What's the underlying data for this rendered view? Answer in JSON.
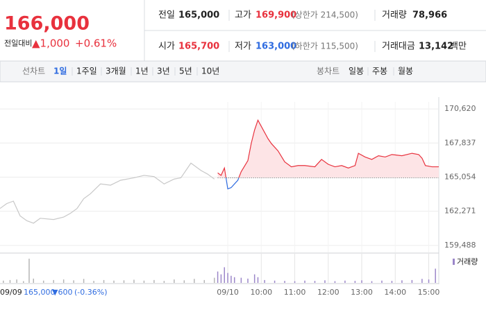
{
  "header": {
    "price": "166,000",
    "change_label": "전일대비",
    "change": "▲1,000",
    "change_pct": "+0.61%",
    "info": [
      {
        "label": "전일",
        "value": "165,000"
      },
      {
        "label": "고가",
        "value": "169,900",
        "note": "(상한가 214,500)"
      },
      {
        "label": "거래량",
        "value": "78,966"
      },
      {
        "label": "시가",
        "value": "165,700"
      },
      {
        "label": "저가",
        "value": "163,000",
        "note": "(하한가 115,500)"
      },
      {
        "label": "거래대금",
        "value": "13,142",
        "unit": "백만"
      }
    ]
  },
  "tabs": {
    "line_label": "선차트",
    "line_tabs": [
      "1일",
      "1주일",
      "3개월",
      "1년",
      "3년",
      "5년",
      "10년"
    ],
    "candle_label": "봉차트",
    "candle_tabs": [
      "일봉",
      "주봉",
      "월봉"
    ]
  },
  "footer": {
    "date": "09/09",
    "close": "165,000",
    "change": "▼600",
    "change_pct": "(-0.36%)"
  },
  "chart_data": {
    "type": "line",
    "xlim": [
      0,
      131
    ],
    "xticks": [
      {
        "value": 68,
        "label": "09/10"
      },
      {
        "value": 78,
        "label": "10:00"
      },
      {
        "value": 88,
        "label": "11:00"
      },
      {
        "value": 98,
        "label": "12:00"
      },
      {
        "value": 108,
        "label": "13:00"
      },
      {
        "value": 118,
        "label": "14:00"
      },
      {
        "value": 128,
        "label": "15:00"
      }
    ],
    "ylim": [
      158920,
      171190
    ],
    "yticks": [
      {
        "value": 170620,
        "label": "170,620"
      },
      {
        "value": 167837,
        "label": "167,837"
      },
      {
        "value": 165054,
        "label": "165,054"
      },
      {
        "value": 162271,
        "label": "162,271"
      },
      {
        "value": 159488,
        "label": "159,488"
      }
    ],
    "grid": true,
    "baseline": 165000,
    "series": [
      {
        "color": "#c8c8c8",
        "x": [
          0,
          2,
          4,
          6,
          8,
          10,
          12,
          16,
          19,
          21,
          23,
          25,
          27,
          30,
          33,
          36,
          40,
          43,
          46,
          49,
          52,
          54,
          57,
          60,
          62,
          64
        ],
        "values": [
          162500,
          162900,
          163100,
          161900,
          161500,
          161300,
          161700,
          161600,
          161800,
          162100,
          162500,
          163300,
          163700,
          164500,
          164400,
          164800,
          165000,
          165200,
          165100,
          164500,
          164900,
          165000,
          166200,
          165600,
          165300,
          164900
        ]
      },
      {
        "color": "#e8313d",
        "below_color": "#2f6ce0",
        "fill_color": "#fde4e6",
        "x": [
          65,
          66,
          67,
          68,
          69,
          70,
          71,
          72,
          74,
          75,
          76,
          77,
          79,
          80,
          81,
          83,
          85,
          87,
          89,
          91,
          94,
          96,
          98,
          100,
          102,
          104,
          106,
          107,
          109,
          111,
          113,
          115,
          117,
          120,
          123,
          125,
          126,
          127,
          129,
          131
        ],
        "values": [
          165400,
          165200,
          165800,
          164100,
          164200,
          164500,
          164800,
          165500,
          166400,
          167800,
          168900,
          169700,
          168700,
          168200,
          167800,
          167200,
          166300,
          165900,
          166000,
          166000,
          165900,
          166500,
          166100,
          165900,
          166000,
          165800,
          166000,
          167000,
          166700,
          166500,
          166800,
          166700,
          166900,
          166800,
          167000,
          166900,
          166600,
          166000,
          165900,
          165900
        ]
      }
    ],
    "volume": {
      "name": "거래량",
      "legend_color": "#9b86c9",
      "ylim": [
        0,
        100
      ],
      "series": [
        {
          "color": "#b5b5b5",
          "x": [
            1,
            3,
            5,
            7,
            8.7,
            10,
            13,
            16,
            19,
            22,
            25,
            28,
            31,
            34,
            37,
            40,
            43,
            46,
            49,
            52,
            55,
            58,
            61,
            64
          ],
          "values": [
            8,
            10,
            12,
            6,
            85,
            15,
            8,
            10,
            12,
            9,
            14,
            7,
            10,
            8,
            9,
            11,
            8,
            10,
            7,
            12,
            9,
            14,
            10,
            18
          ]
        },
        {
          "color": "#9b86c9",
          "x": [
            65,
            66,
            67,
            68,
            69,
            70,
            72,
            74,
            76,
            77,
            79,
            82,
            85,
            88,
            91,
            94,
            97,
            100,
            103,
            106,
            108,
            111,
            114,
            117,
            120,
            123,
            126,
            128,
            130
          ],
          "values": [
            40,
            30,
            55,
            35,
            25,
            20,
            18,
            15,
            30,
            20,
            10,
            8,
            7,
            6,
            8,
            7,
            9,
            6,
            8,
            7,
            9,
            6,
            8,
            7,
            9,
            10,
            14,
            12,
            50
          ]
        }
      ]
    }
  }
}
